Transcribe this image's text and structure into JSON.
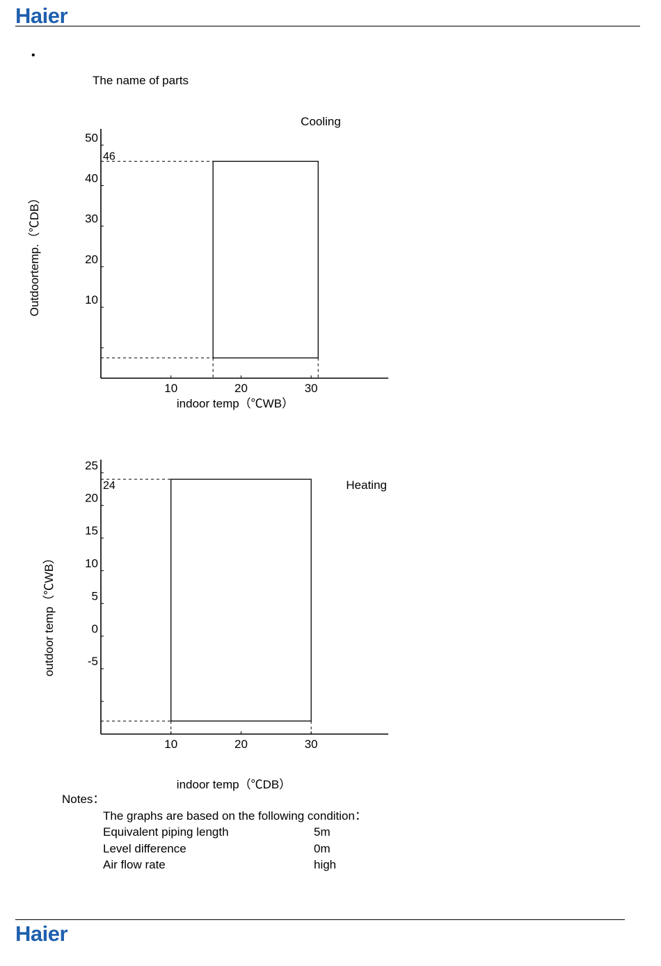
{
  "brand": {
    "logo_text": "Haier",
    "logo_color": "#1f5fae"
  },
  "section": {
    "bullet": "•",
    "title": "The name of parts"
  },
  "chart_data": [
    {
      "type": "area",
      "title": "Cooling",
      "xlabel": "indoor temp（℃WB）",
      "ylabel": "Outdoortemp.（℃DB）",
      "x_ticks": [
        10,
        20,
        30
      ],
      "y_ticks": [
        10,
        20,
        30,
        40,
        50
      ],
      "xlim": [
        0,
        41
      ],
      "ylim": [
        -7.5,
        54
      ],
      "region": {
        "x": [
          16,
          31
        ],
        "y": [
          -2.5,
          46
        ]
      },
      "annotations": [
        {
          "label": "46",
          "y": 46
        }
      ]
    },
    {
      "type": "area",
      "title": "Heating",
      "xlabel": "indoor temp（℃DB）",
      "ylabel": "outdoor temp（℃WB）",
      "x_ticks": [
        10,
        20,
        30
      ],
      "y_ticks": [
        -5,
        0,
        5,
        10,
        15,
        20,
        25
      ],
      "xlim": [
        0,
        41
      ],
      "ylim": [
        -15,
        27
      ],
      "region": {
        "x": [
          10,
          30
        ],
        "y": [
          -13,
          24
        ]
      },
      "annotations": [
        {
          "label": "24",
          "y": 24
        }
      ]
    }
  ],
  "notes": {
    "heading": "Notes：",
    "intro": "The graphs are based on the following condition：",
    "rows": [
      {
        "label": "Equivalent piping length",
        "value": "5m"
      },
      {
        "label": "Level difference",
        "value": "0m"
      },
      {
        "label": "Air flow rate",
        "value": "high"
      }
    ]
  }
}
